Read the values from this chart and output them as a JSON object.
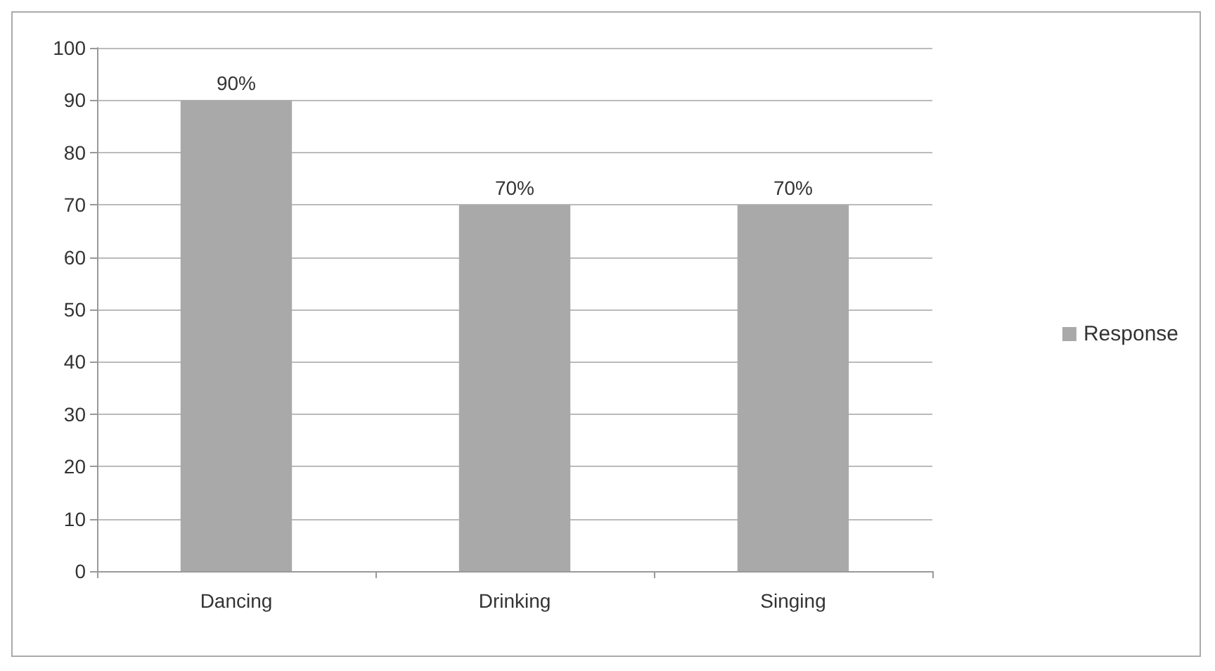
{
  "chart_data": {
    "type": "bar",
    "categories": [
      "Dancing",
      "Drinking",
      "Singing"
    ],
    "series": [
      {
        "name": "Response",
        "color": "#a9a9a9",
        "values": [
          90,
          70,
          70
        ],
        "value_labels": [
          "90%",
          "70%",
          "70%"
        ]
      }
    ],
    "ylim": [
      0,
      100
    ],
    "yticks": [
      0,
      10,
      20,
      30,
      40,
      50,
      60,
      70,
      80,
      90,
      100
    ],
    "grid": "y",
    "legend": "right"
  }
}
